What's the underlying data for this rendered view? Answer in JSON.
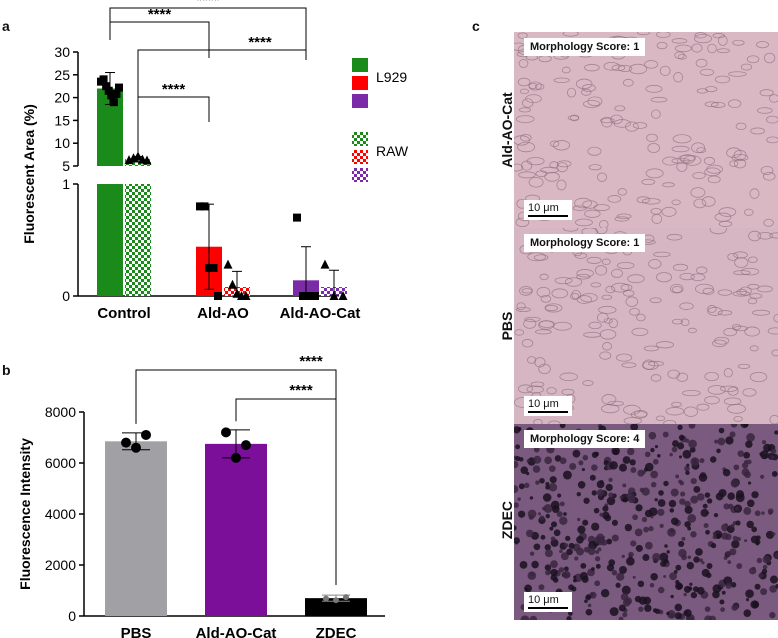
{
  "panel_labels": {
    "a": "a",
    "b": "b",
    "c": "c"
  },
  "chart_data": [
    {
      "type": "bar",
      "panel": "a",
      "ylabel": "Fluorescent Area (%)",
      "categories": [
        "Control",
        "Ald-AO",
        "Ald-AO-Cat"
      ],
      "broken_axis": {
        "lower_ylim": [
          0,
          1
        ],
        "upper_ylim": [
          5,
          30
        ],
        "lower_ticks": [
          "0",
          "1"
        ],
        "upper_ticks": [
          "5",
          "10",
          "15",
          "20",
          "25",
          "30"
        ]
      },
      "legend": [
        {
          "label": "L929",
          "pattern": "solid"
        },
        {
          "label": "RAW",
          "pattern": "checkered"
        }
      ],
      "series": [
        {
          "name": "L929",
          "values": [
            22.0,
            0.44,
            0.14
          ],
          "errors": [
            3.5,
            0.38,
            0.3
          ],
          "points": [
            [
              23.5,
              24,
              22.5,
              21.5,
              20.5,
              19,
              20.8,
              22.2
            ],
            [
              0.8,
              0.8,
              0.25,
              0.25,
              0.0
            ],
            [
              0.7,
              0.0,
              0.0,
              0.0
            ]
          ],
          "colors": [
            "#1a8a1a",
            "#ff0000",
            "#7b2aa8"
          ],
          "marker": "square"
        },
        {
          "name": "RAW",
          "values": [
            6.5,
            0.08,
            0.08
          ],
          "errors": [
            0.6,
            0.14,
            0.15
          ],
          "points": [
            [
              6.3,
              6.7,
              7.1,
              6.4,
              6.2
            ],
            [
              0.28,
              0.1,
              0.02,
              0.0,
              0.0
            ],
            [
              0.28,
              0.0,
              0.0
            ]
          ],
          "colors": [
            "#1a8a1a",
            "#ff0000",
            "#7b2aa8"
          ],
          "marker": "triangle"
        }
      ],
      "significance": [
        {
          "from": "Control-L929",
          "to": "Ald-AO",
          "label": "****"
        },
        {
          "from": "Control-L929",
          "to": "Ald-AO-Cat",
          "label": "****"
        },
        {
          "from": "Control-RAW",
          "to": "Ald-AO-Cat",
          "label": "****"
        },
        {
          "from": "Control-RAW",
          "to": "Ald-AO",
          "label": "****"
        }
      ]
    },
    {
      "type": "bar",
      "panel": "b",
      "ylabel": "Fluorescence Intensity",
      "categories": [
        "PBS",
        "Ald-AO-Cat",
        "ZDEC"
      ],
      "values": [
        6850,
        6750,
        700
      ],
      "errors": [
        330,
        550,
        120
      ],
      "colors": [
        "#a0a0a5",
        "#7b0f9a",
        "#000000"
      ],
      "points": [
        [
          6800,
          6600,
          7100
        ],
        [
          7200,
          6200,
          6700
        ],
        [
          680,
          620,
          740
        ]
      ],
      "ylim": [
        0,
        8000
      ],
      "yticks": [
        "0",
        "2000",
        "4000",
        "6000",
        "8000"
      ],
      "significance": [
        {
          "from": "PBS",
          "to": "ZDEC",
          "label": "****"
        },
        {
          "from": "Ald-AO-Cat",
          "to": "ZDEC",
          "label": "****"
        }
      ]
    }
  ],
  "micrographs": [
    {
      "row_label": "Ald-AO-Cat",
      "score": "Morphology Score: 1",
      "scale": "10 μm",
      "tone": "#d9b8c4"
    },
    {
      "row_label": "PBS",
      "score": "Morphology Score: 1",
      "scale": "10 μm",
      "tone": "#d5b6c2"
    },
    {
      "row_label": "ZDEC",
      "score": "Morphology Score: 4",
      "scale": "10 μm",
      "tone": "#7a5a7e"
    }
  ]
}
